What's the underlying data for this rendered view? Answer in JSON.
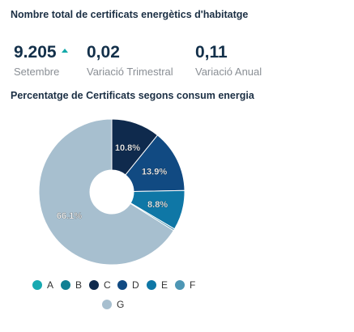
{
  "header": {
    "title": "Nombre total de certificats energètics d'habitatge"
  },
  "kpis": [
    {
      "value": "9.205",
      "label": "Setembre",
      "trend_icon": "trend-up-icon",
      "trend_color": "#14a9a9"
    },
    {
      "value": "0,02",
      "label": "Variació Trimestral"
    },
    {
      "value": "0,11",
      "label": "Variació Anual"
    }
  ],
  "chart_title": "Percentatge de Certificats segons consum energia",
  "chart_data": {
    "type": "pie",
    "donut": true,
    "title": "Percentatge de Certificats segons consum energia",
    "legend_position": "bottom",
    "slices": [
      {
        "label": "A",
        "value": 0.0,
        "color": "#17a9b1",
        "data_label": ""
      },
      {
        "label": "B",
        "value": 0.0,
        "color": "#117f93",
        "data_label": ""
      },
      {
        "label": "C",
        "value": 10.8,
        "color": "#0f2a4d",
        "data_label": "10.8%"
      },
      {
        "label": "D",
        "value": 13.9,
        "color": "#114a82",
        "data_label": "13.9%"
      },
      {
        "label": "E",
        "value": 8.8,
        "color": "#0f77a6",
        "data_label": "8.8%"
      },
      {
        "label": "F",
        "value": 0.4,
        "color": "#4d96b4",
        "data_label": ""
      },
      {
        "label": "G",
        "value": 66.1,
        "color": "#a7bfcf",
        "data_label": "66.1%"
      }
    ]
  }
}
